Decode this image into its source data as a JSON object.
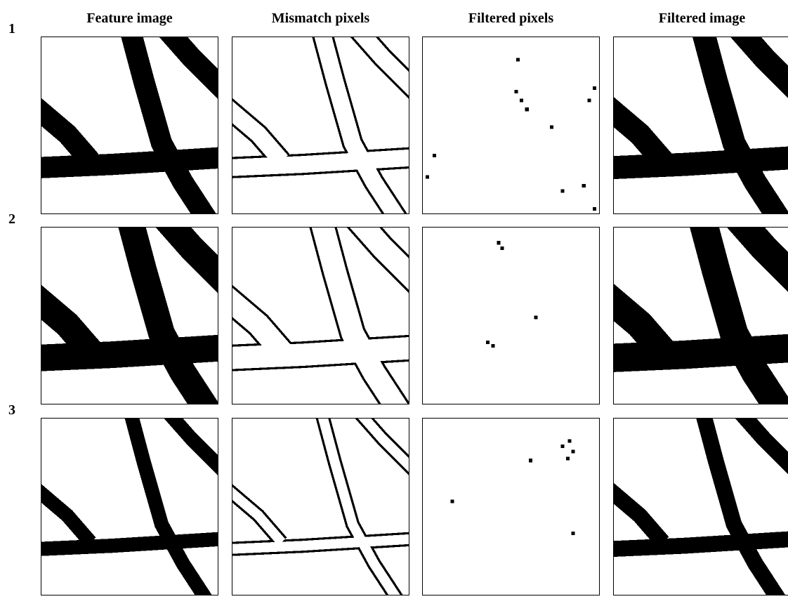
{
  "columns": [
    "Feature image",
    "Mismatch pixels",
    "Filtered pixels",
    "Filtered image"
  ],
  "rows": [
    "1",
    "2",
    "3"
  ]
}
